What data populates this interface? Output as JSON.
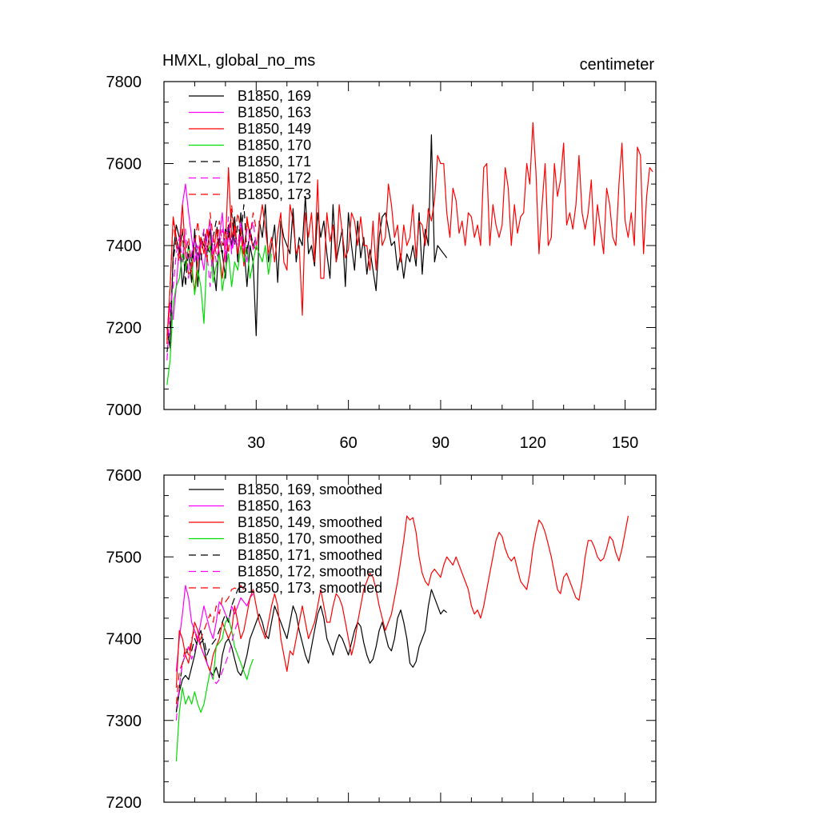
{
  "chart_data": [
    {
      "type": "line",
      "title_left": "HMXL, global_no_ms",
      "title_right": "centimeter",
      "xlim": [
        0,
        160
      ],
      "ylim": [
        7000,
        7800
      ],
      "x_ticks": [
        30,
        60,
        90,
        120,
        150
      ],
      "x_tick_labels": [
        "30",
        "60",
        "90",
        "120",
        "150"
      ],
      "y_ticks": [
        7000,
        7200,
        7400,
        7600,
        7800
      ],
      "y_tick_labels": [
        "7000",
        "7200",
        "7400",
        "7600",
        "7800"
      ],
      "legend_position": "top-left",
      "series": [
        {
          "name": "B1850, 169",
          "color": "#000000",
          "dash": "solid",
          "x_start": 1,
          "values": [
            7200,
            7150,
            7380,
            7450,
            7420,
            7300,
            7360,
            7380,
            7310,
            7440,
            7300,
            7420,
            7400,
            7380,
            7440,
            7350,
            7290,
            7420,
            7380,
            7320,
            7450,
            7400,
            7470,
            7360,
            7480,
            7400,
            7300,
            7400,
            7360,
            7180,
            7460,
            7420,
            7500,
            7360,
            7400,
            7450,
            7310,
            7460,
            7420,
            7400,
            7380,
            7490,
            7360,
            7420,
            7400,
            7520,
            7380,
            7400,
            7350,
            7480,
            7420,
            7460,
            7380,
            7320,
            7500,
            7360,
            7400,
            7440,
            7300,
            7480,
            7400,
            7340,
            7460,
            7370,
            7420,
            7330,
            7390,
            7340,
            7290,
            7420,
            7470,
            7480,
            7440,
            7400,
            7410,
            7340,
            7380,
            7320,
            7380,
            7360,
            7400,
            7350,
            7480,
            7330,
            7440,
            7400,
            7670,
            7360,
            7400,
            7390,
            7380,
            7370
          ]
        },
        {
          "name": "B1850, 163",
          "color": "#ff00ff",
          "dash": "solid",
          "x_start": 1,
          "values": [
            7180,
            7260,
            7220,
            7300,
            7400,
            7500,
            7550,
            7480,
            7420,
            7360,
            7400,
            7380,
            7340,
            7420,
            7460,
            7380,
            7400,
            7420,
            7480,
            7360,
            7430,
            7390,
            7440,
            7380,
            7420,
            7400,
            7360,
            7440,
            7390,
            7410
          ]
        },
        {
          "name": "B1850, 149",
          "color": "#ff0000",
          "dash": "solid",
          "x_start": 1,
          "values": [
            7170,
            7300,
            7470,
            7420,
            7380,
            7500,
            7380,
            7330,
            7340,
            7290,
            7360,
            7420,
            7380,
            7440,
            7400,
            7360,
            7440,
            7380,
            7320,
            7400,
            7590,
            7420,
            7450,
            7380,
            7440,
            7350,
            7470,
            7420,
            7400,
            7390,
            7450,
            7500,
            7440,
            7380,
            7420,
            7360,
            7430,
            7480,
            7360,
            7340,
            7500,
            7460,
            7380,
            7400,
            7230,
            7480,
            7420,
            7480,
            7360,
            7560,
            7320,
            7320,
            7480,
            7410,
            7450,
            7360,
            7500,
            7430,
            7370,
            7390,
            7480,
            7460,
            7400,
            7470,
            7400,
            7400,
            7340,
            7460,
            7340,
            7480,
            7400,
            7420,
            7550,
            7500,
            7420,
            7450,
            7360,
            7450,
            7400,
            7420,
            7500,
            7370,
            7460,
            7450,
            7400,
            7490,
            7460,
            7510,
            7620,
            7600,
            7600,
            7480,
            7420,
            7540,
            7510,
            7430,
            7460,
            7400,
            7480,
            7470,
            7420,
            7450,
            7400,
            7590,
            7600,
            7400,
            7500,
            7450,
            7420,
            7450,
            7590,
            7540,
            7400,
            7500,
            7430,
            7470,
            7480,
            7600,
            7550,
            7700,
            7580,
            7380,
            7500,
            7600,
            7400,
            7420,
            7600,
            7520,
            7560,
            7650,
            7450,
            7480,
            7440,
            7500,
            7620,
            7480,
            7440,
            7480,
            7560,
            7400,
            7500,
            7440,
            7380,
            7540,
            7500,
            7420,
            7400,
            7550,
            7650,
            7460,
            7420,
            7480,
            7400,
            7640,
            7620,
            7380,
            7520,
            7590,
            7580
          ]
        },
        {
          "name": "B1850, 170",
          "color": "#00dd00",
          "dash": "solid",
          "x_start": 1,
          "values": [
            7060,
            7120,
            7260,
            7300,
            7320,
            7380,
            7340,
            7400,
            7360,
            7280,
            7340,
            7300,
            7210,
            7380,
            7400,
            7310,
            7350,
            7380,
            7290,
            7340,
            7380,
            7300,
            7360,
            7340,
            7400,
            7360,
            7400,
            7320,
            7360,
            7400,
            7380,
            7360,
            7400,
            7330,
            7380
          ]
        },
        {
          "name": "B1850, 171",
          "color": "#000000",
          "dash": "dashed",
          "x_start": 1,
          "values": [
            7140,
            7200,
            7360,
            7420,
            7380,
            7440,
            7300,
            7400,
            7360,
            7420,
            7380,
            7360,
            7440,
            7400,
            7380,
            7420,
            7460,
            7400,
            7380,
            7440,
            7420,
            7480,
            7400,
            7450,
            7420,
            7500,
            7380,
            7440,
            7400,
            7420
          ]
        },
        {
          "name": "B1850, 172",
          "color": "#ff00ff",
          "dash": "dashed",
          "x_start": 1,
          "values": [
            7120,
            7240,
            7300,
            7380,
            7420,
            7360,
            7440,
            7320,
            7380,
            7420,
            7360,
            7400,
            7440,
            7380,
            7300,
            7420,
            7360,
            7400,
            7440,
            7380,
            7470,
            7380,
            7420,
            7400,
            7460,
            7380,
            7440,
            7420,
            7460,
            7400
          ]
        },
        {
          "name": "B1850, 173",
          "color": "#ff0000",
          "dash": "dashed",
          "x_start": 1,
          "values": [
            7160,
            7300,
            7460,
            7400,
            7360,
            7440,
            7380,
            7420,
            7340,
            7400,
            7460,
            7380,
            7420,
            7360,
            7480,
            7420,
            7380,
            7460,
            7400,
            7440,
            7380,
            7500,
            7420,
            7480,
            7440,
            7380,
            7460,
            7420,
            7480,
            7440
          ]
        }
      ]
    },
    {
      "type": "line",
      "xlim": [
        0,
        160
      ],
      "ylim": [
        7200,
        7600
      ],
      "x_ticks": [
        30,
        60,
        90,
        120,
        150
      ],
      "x_tick_labels": [
        "",
        "",
        "",
        "",
        ""
      ],
      "y_ticks": [
        7200,
        7300,
        7400,
        7500,
        7600
      ],
      "y_tick_labels": [
        "7200",
        "7300",
        "7400",
        "7500",
        "7600"
      ],
      "legend_position": "top-left",
      "series": [
        {
          "name": "B1850, 169, smoothed",
          "color": "#000000",
          "dash": "solid",
          "x_start": 4,
          "values": [
            7310,
            7335,
            7350,
            7355,
            7350,
            7365,
            7380,
            7400,
            7410,
            7390,
            7370,
            7360,
            7355,
            7365,
            7352,
            7380,
            7395,
            7400,
            7390,
            7375,
            7360,
            7355,
            7365,
            7380,
            7400,
            7410,
            7420,
            7430,
            7420,
            7405,
            7400,
            7420,
            7440,
            7430,
            7420,
            7410,
            7400,
            7420,
            7440,
            7430,
            7410,
            7395,
            7380,
            7370,
            7390,
            7410,
            7430,
            7440,
            7425,
            7400,
            7390,
            7380,
            7395,
            7405,
            7400,
            7390,
            7380,
            7395,
            7410,
            7420,
            7415,
            7395,
            7380,
            7370,
            7375,
            7390,
            7410,
            7420,
            7405,
            7390,
            7385,
            7400,
            7425,
            7435,
            7420,
            7400,
            7370,
            7365,
            7372,
            7390,
            7400,
            7410,
            7440,
            7460,
            7450,
            7440,
            7430,
            7435,
            7432
          ]
        },
        {
          "name": "B1850, 163",
          "color": "#ff00ff",
          "dash": "solid",
          "x_start": 4,
          "values": [
            7360,
            7400,
            7430,
            7465,
            7450,
            7420,
            7410,
            7400,
            7420,
            7440,
            7425,
            7410,
            7400,
            7420,
            7445,
            7440,
            7430,
            7420,
            7440,
            7430,
            7440,
            7450,
            7445,
            7440,
            7450,
            7455
          ]
        },
        {
          "name": "B1850, 149, smoothed",
          "color": "#ff0000",
          "dash": "solid",
          "x_start": 4,
          "values": [
            7340,
            7410,
            7400,
            7380,
            7370,
            7395,
            7420,
            7410,
            7390,
            7380,
            7370,
            7360,
            7380,
            7390,
            7400,
            7420,
            7410,
            7400,
            7410,
            7440,
            7420,
            7400,
            7410,
            7430,
            7450,
            7460,
            7440,
            7420,
            7410,
            7400,
            7420,
            7440,
            7455,
            7440,
            7400,
            7380,
            7360,
            7385,
            7380,
            7400,
            7420,
            7440,
            7420,
            7400,
            7410,
            7420,
            7440,
            7460,
            7440,
            7420,
            7420,
            7440,
            7455,
            7450,
            7440,
            7420,
            7400,
            7380,
            7395,
            7420,
            7440,
            7460,
            7470,
            7480,
            7475,
            7460,
            7440,
            7425,
            7410,
            7420,
            7430,
            7450,
            7470,
            7495,
            7520,
            7550,
            7545,
            7548,
            7530,
            7500,
            7480,
            7470,
            7465,
            7480,
            7485,
            7480,
            7475,
            7490,
            7500,
            7495,
            7490,
            7500,
            7490,
            7480,
            7470,
            7460,
            7440,
            7430,
            7435,
            7425,
            7440,
            7460,
            7480,
            7500,
            7520,
            7530,
            7525,
            7510,
            7500,
            7495,
            7500,
            7485,
            7470,
            7465,
            7460,
            7480,
            7510,
            7530,
            7545,
            7540,
            7530,
            7515,
            7500,
            7480,
            7460,
            7455,
            7475,
            7480,
            7470,
            7460,
            7450,
            7447,
            7470,
            7500,
            7520,
            7520,
            7512,
            7500,
            7495,
            7498,
            7510,
            7525,
            7520,
            7505,
            7495,
            7510,
            7530,
            7550
          ]
        },
        {
          "name": "B1850, 170, smoothed",
          "color": "#00dd00",
          "dash": "solid",
          "x_start": 4,
          "values": [
            7250,
            7310,
            7340,
            7320,
            7330,
            7320,
            7335,
            7320,
            7310,
            7320,
            7340,
            7360,
            7350,
            7390,
            7395,
            7400,
            7420,
            7425,
            7410,
            7390,
            7380,
            7370,
            7360,
            7350,
            7365,
            7375
          ]
        },
        {
          "name": "B1850, 171, smoothed",
          "color": "#000000",
          "dash": "dashed",
          "x_start": 4,
          "values": [
            7310,
            7340,
            7370,
            7380,
            7390,
            7385,
            7400,
            7390,
            7395,
            7400,
            7380,
            7390,
            7395,
            7400,
            7410,
            7420,
            7430,
            7420,
            7440,
            7450,
            7460,
            7465
          ]
        },
        {
          "name": "B1850, 172, smoothed",
          "color": "#ff00ff",
          "dash": "dashed",
          "x_start": 4,
          "values": [
            7300,
            7340,
            7370,
            7380,
            7390,
            7375,
            7385,
            7400,
            7390,
            7380,
            7370,
            7360,
            7350,
            7345,
            7350,
            7360,
            7370,
            7380,
            7395,
            7410,
            7420
          ]
        },
        {
          "name": "B1850, 173, smoothed",
          "color": "#ff0000",
          "dash": "dashed",
          "x_start": 4,
          "values": [
            7320,
            7360,
            7370,
            7390,
            7380,
            7400,
            7410,
            7395,
            7400,
            7410,
            7420,
            7430,
            7420,
            7440,
            7430,
            7450,
            7445,
            7450,
            7460,
            7462,
            7460,
            7465,
            7460
          ]
        }
      ]
    }
  ]
}
